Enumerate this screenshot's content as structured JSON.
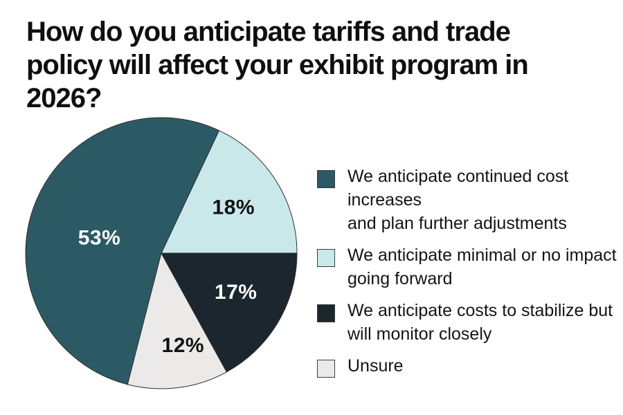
{
  "title": {
    "text": "How do you anticipate tariffs and trade\npolicy will affect your exhibit program in\n2026?"
  },
  "chart_data": {
    "type": "pie",
    "title": "How do you anticipate tariffs and trade policy will affect your exhibit program in 2026?",
    "unit": "%",
    "slices": [
      {
        "label": "We anticipate continued cost increases\nand plan further adjustments",
        "value": 53,
        "pct_label": "53%",
        "color": "#2C5A64",
        "pct_label_color": "#FFFFFF",
        "label_r_factor": 0.47,
        "label_angle_offset_deg": 6
      },
      {
        "label": "We anticipate minimal or no impact\ngoing forward",
        "value": 18,
        "pct_label": "18%",
        "color": "#C9E8EA",
        "pct_label_color": "#111111",
        "label_r_factor": 0.63,
        "label_angle_offset_deg": 0
      },
      {
        "label": "We anticipate costs to stabilize but\nwill monitor closely",
        "value": 17,
        "pct_label": "17%",
        "color": "#1C262E",
        "pct_label_color": "#FFFFFF",
        "label_r_factor": 0.62,
        "label_angle_offset_deg": 3
      },
      {
        "label": "Unsure",
        "value": 12,
        "pct_label": "12%",
        "color": "#EBEAE8",
        "pct_label_color": "#111111",
        "label_r_factor": 0.7,
        "label_angle_offset_deg": 6
      }
    ],
    "draw_order": [
      1,
      0,
      3,
      2
    ],
    "start_angle_deg": 0,
    "direction": "ccw",
    "stroke_color": "#2D2D2D",
    "background": "#FFFFFF",
    "legend_position": "right"
  }
}
